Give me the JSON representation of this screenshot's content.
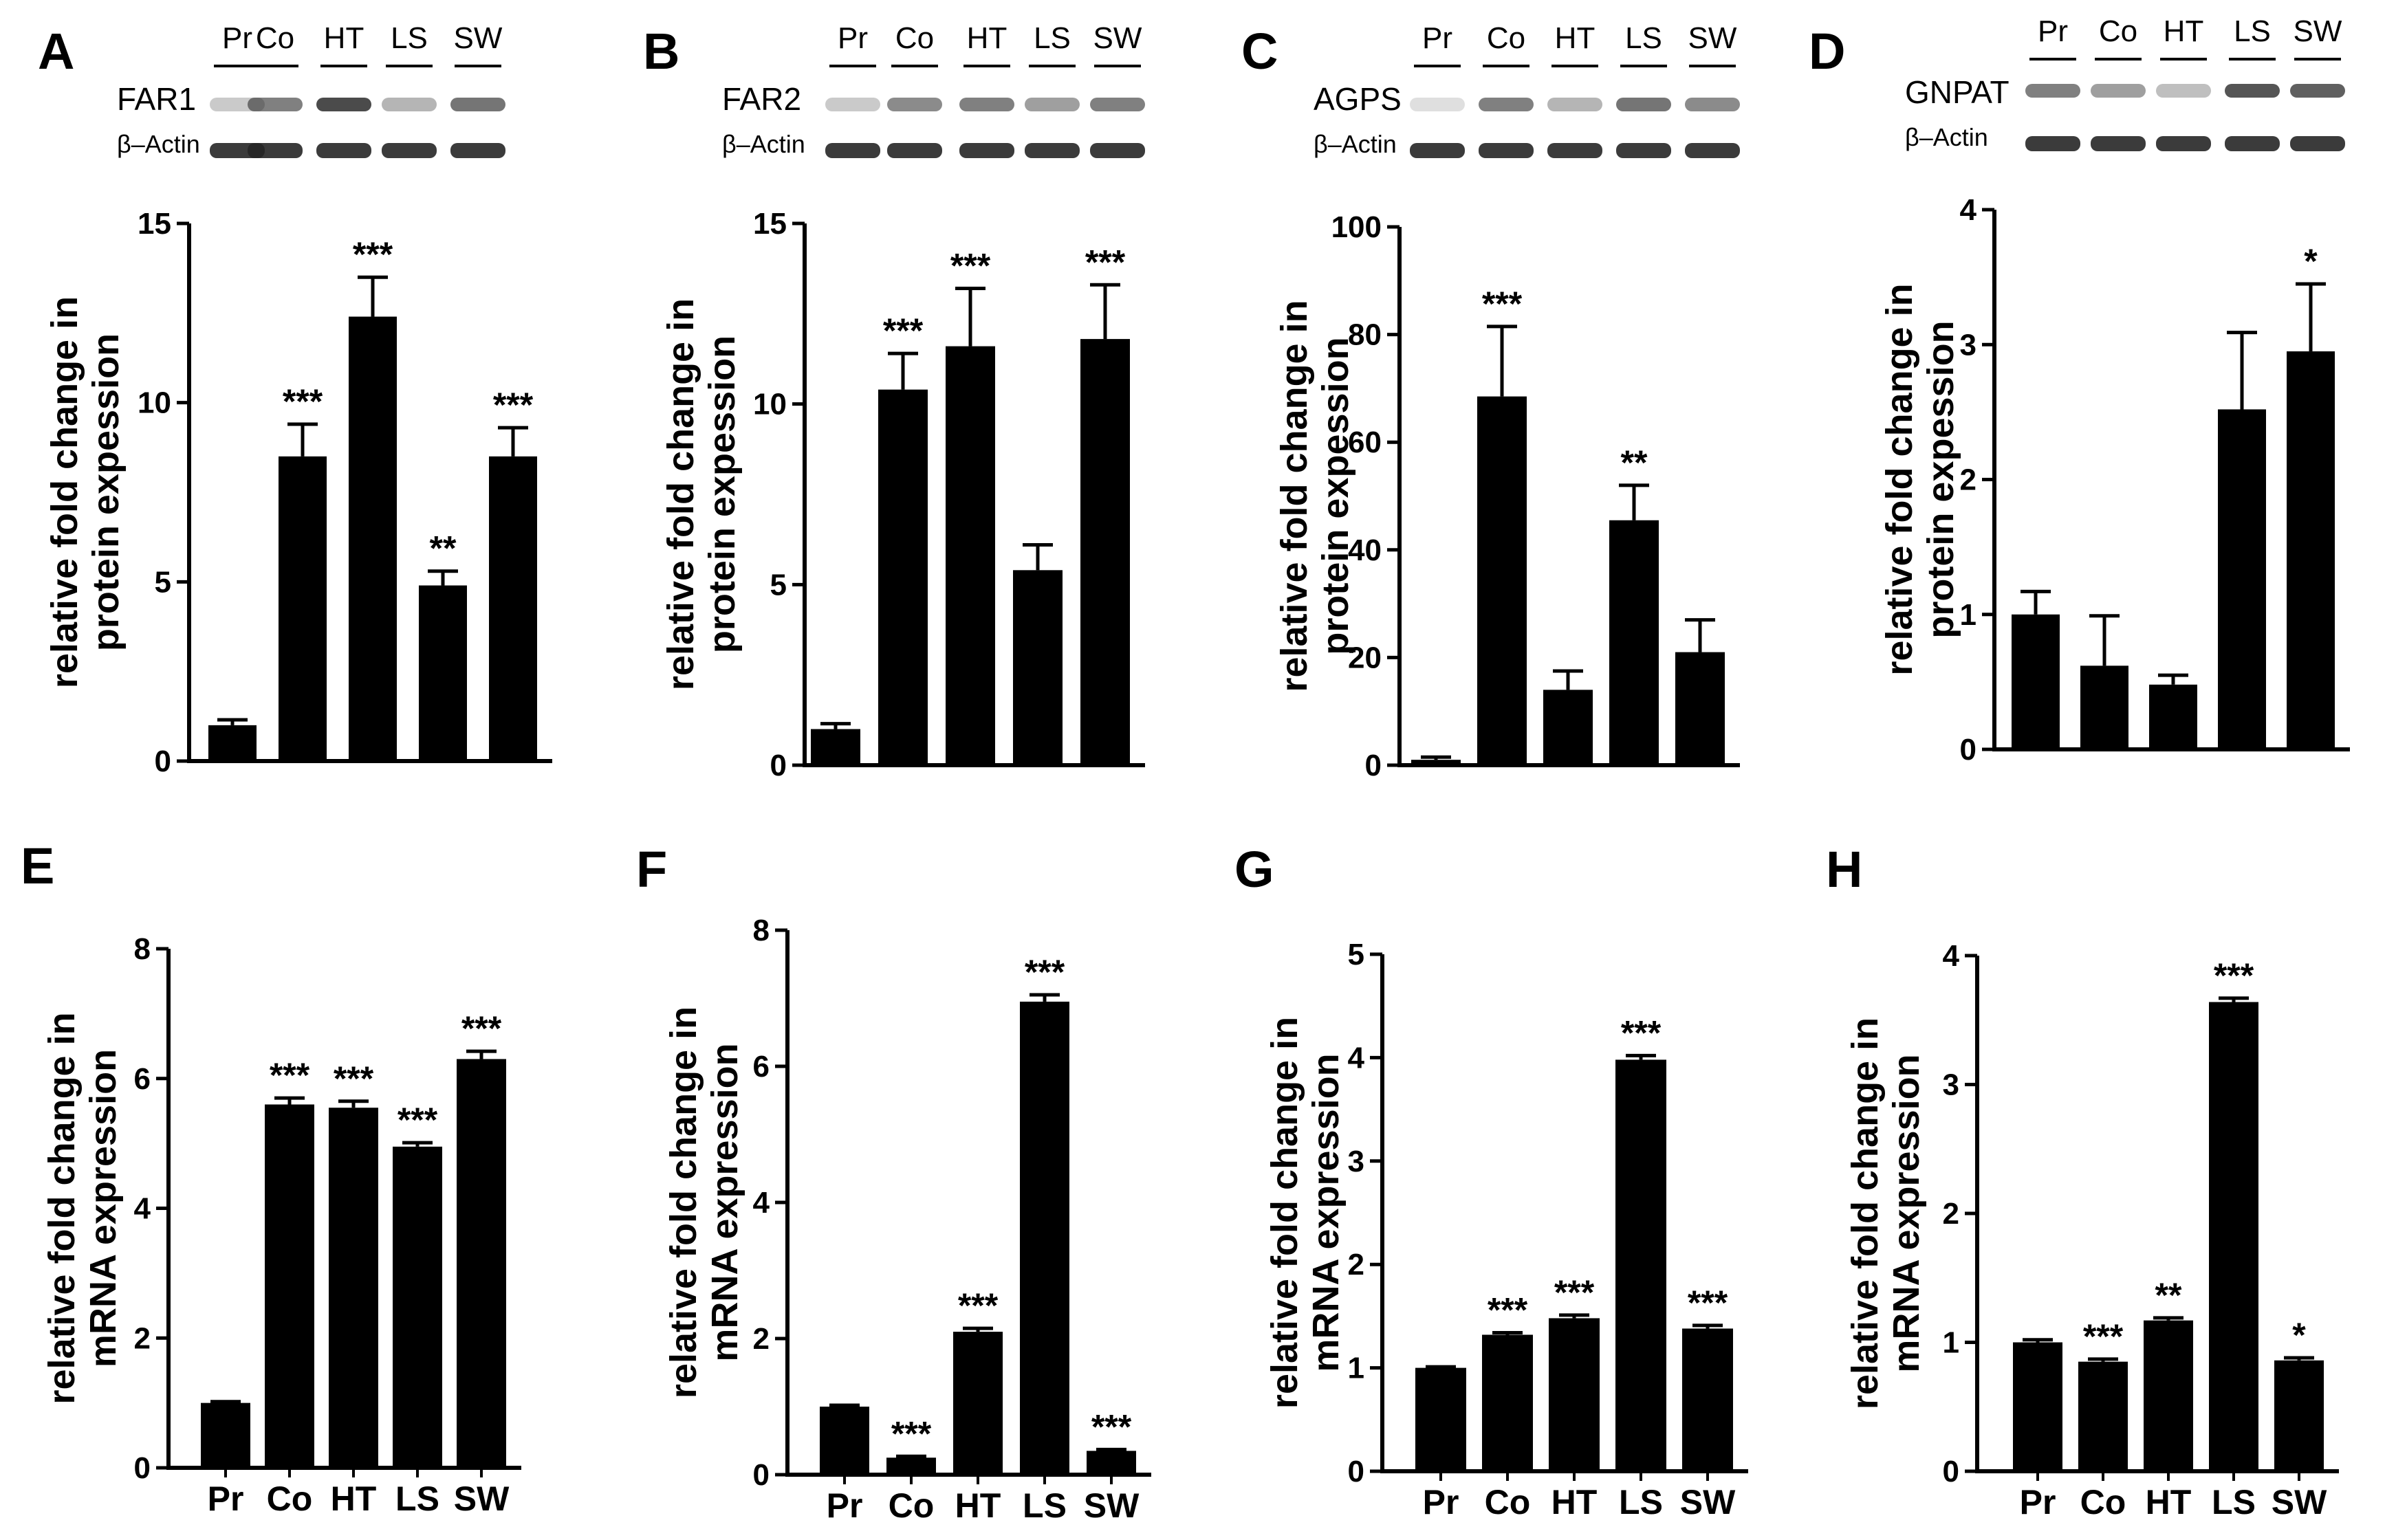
{
  "chart_data": [
    {
      "panel": "A",
      "type": "bar",
      "blot": {
        "protein": "FAR1",
        "control": "β–Actin",
        "lanes": [
          "Pr",
          "Co",
          "HT",
          "LS",
          "SW"
        ],
        "band": [
          0.25,
          0.6,
          0.85,
          0.35,
          0.65
        ]
      },
      "categories": [
        "Pr",
        "Co",
        "HT",
        "LS",
        "SW"
      ],
      "values": [
        1.0,
        8.5,
        12.4,
        4.9,
        8.5
      ],
      "errors": [
        0.15,
        0.9,
        1.1,
        0.4,
        0.8
      ],
      "significance": [
        "",
        "***",
        "***",
        "**",
        "***"
      ],
      "ylabel": [
        "relative fold change in",
        "protein expession"
      ],
      "ylim": [
        0,
        15
      ],
      "yticks": [
        0,
        5,
        10,
        15
      ]
    },
    {
      "panel": "B",
      "type": "bar",
      "blot": {
        "protein": "FAR2",
        "control": "β–Actin",
        "lanes": [
          "Pr",
          "Co",
          "HT",
          "LS",
          "SW"
        ],
        "band": [
          0.25,
          0.55,
          0.6,
          0.45,
          0.6
        ]
      },
      "categories": [
        "Pr",
        "Co",
        "HT",
        "LS",
        "SW"
      ],
      "values": [
        1.0,
        10.4,
        11.6,
        5.4,
        11.8
      ],
      "errors": [
        0.15,
        1.0,
        1.6,
        0.7,
        1.5
      ],
      "significance": [
        "",
        "***",
        "***",
        "",
        "***"
      ],
      "ylabel": [
        "relative fold change in",
        "protein expession"
      ],
      "ylim": [
        0,
        15
      ],
      "yticks": [
        0,
        5,
        10,
        15
      ]
    },
    {
      "panel": "C",
      "type": "bar",
      "blot": {
        "protein": "AGPS",
        "control": "β–Actin",
        "lanes": [
          "Pr",
          "Co",
          "HT",
          "LS",
          "SW"
        ],
        "band": [
          0.15,
          0.6,
          0.35,
          0.65,
          0.55
        ]
      },
      "categories": [
        "Pr",
        "Co",
        "HT",
        "LS",
        "SW"
      ],
      "values": [
        1.0,
        68.5,
        14.0,
        45.5,
        21.0
      ],
      "errors": [
        0.5,
        13.0,
        3.5,
        6.5,
        6.0
      ],
      "significance": [
        "",
        "***",
        "",
        "**",
        ""
      ],
      "ylabel": [
        "relative fold change in",
        "protein expession"
      ],
      "ylim": [
        0,
        100
      ],
      "yticks": [
        0,
        20,
        40,
        60,
        80,
        100
      ]
    },
    {
      "panel": "D",
      "type": "bar",
      "blot": {
        "protein": "GNPAT",
        "control": "β–Actin",
        "lanes": [
          "Pr",
          "Co",
          "HT",
          "LS",
          "SW"
        ],
        "band": [
          0.6,
          0.45,
          0.3,
          0.8,
          0.75
        ]
      },
      "categories": [
        "Pr",
        "Co",
        "HT",
        "LS",
        "SW"
      ],
      "values": [
        1.0,
        0.62,
        0.48,
        2.52,
        2.95
      ],
      "errors": [
        0.17,
        0.37,
        0.07,
        0.57,
        0.5
      ],
      "significance": [
        "",
        "",
        "",
        "",
        "*"
      ],
      "ylabel": [
        "relative fold change in",
        "protein expession"
      ],
      "ylim": [
        0,
        4
      ],
      "yticks": [
        0,
        1,
        2,
        3,
        4
      ]
    },
    {
      "panel": "E",
      "type": "bar",
      "categories": [
        "Pr",
        "Co",
        "HT",
        "LS",
        "SW"
      ],
      "values": [
        1.0,
        5.6,
        5.55,
        4.95,
        6.3
      ],
      "errors": [
        0.02,
        0.1,
        0.1,
        0.06,
        0.12
      ],
      "significance": [
        "",
        "***",
        "***",
        "***",
        "***"
      ],
      "ylabel": [
        "relative fold change in",
        "mRNA expression"
      ],
      "ylim": [
        0,
        8
      ],
      "yticks": [
        0,
        2,
        4,
        6,
        8
      ]
    },
    {
      "panel": "F",
      "type": "bar",
      "categories": [
        "Pr",
        "Co",
        "HT",
        "LS",
        "SW"
      ],
      "values": [
        1.0,
        0.25,
        2.1,
        6.95,
        0.35
      ],
      "errors": [
        0.02,
        0.02,
        0.05,
        0.1,
        0.02
      ],
      "significance": [
        "",
        "***",
        "***",
        "***",
        "***"
      ],
      "ylabel": [
        "relative fold change in",
        "mRNA expression"
      ],
      "ylim": [
        0,
        8
      ],
      "yticks": [
        0,
        2,
        4,
        6,
        8
      ]
    },
    {
      "panel": "G",
      "type": "bar",
      "categories": [
        "Pr",
        "Co",
        "HT",
        "LS",
        "SW"
      ],
      "values": [
        1.0,
        1.32,
        1.48,
        3.98,
        1.38
      ],
      "errors": [
        0.01,
        0.02,
        0.03,
        0.04,
        0.03
      ],
      "significance": [
        "",
        "***",
        "***",
        "***",
        "***"
      ],
      "ylabel": [
        "relative fold change in",
        "mRNA expression"
      ],
      "ylim": [
        0,
        5
      ],
      "yticks": [
        0,
        1,
        2,
        3,
        4,
        5
      ]
    },
    {
      "panel": "H",
      "type": "bar",
      "categories": [
        "Pr",
        "Co",
        "HT",
        "LS",
        "SW"
      ],
      "values": [
        1.0,
        0.85,
        1.17,
        3.64,
        0.86
      ],
      "errors": [
        0.02,
        0.02,
        0.02,
        0.03,
        0.02
      ],
      "significance": [
        "",
        "***",
        "**",
        "***",
        "*"
      ],
      "ylabel": [
        "relative fold change in",
        "mRNA expression"
      ],
      "ylim": [
        0,
        4
      ],
      "yticks": [
        0,
        1,
        2,
        3,
        4
      ]
    }
  ],
  "colors": {
    "bar": "#000000",
    "axis": "#000000",
    "band": "#2b2b2b",
    "actin": "#262626"
  }
}
